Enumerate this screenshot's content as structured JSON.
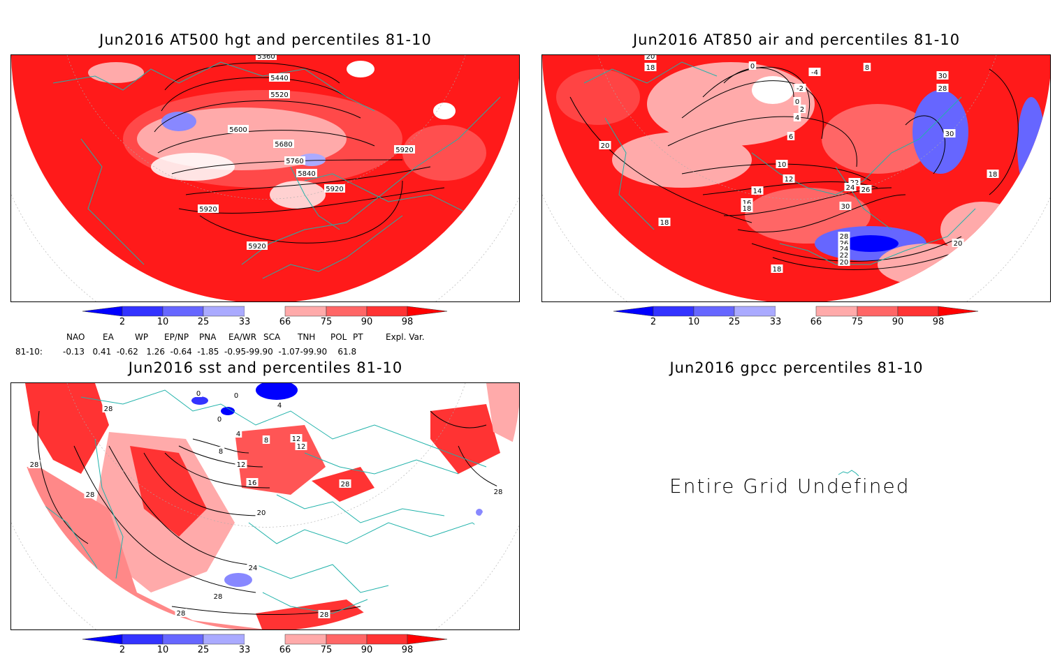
{
  "panels": {
    "hgt": {
      "title": "Jun2016 AT500 hgt and percentiles 81-10",
      "contours": [
        "5360",
        "5440",
        "5520",
        "5600",
        "5680",
        "5760",
        "5840",
        "5920",
        "5920",
        "5920",
        "5920"
      ]
    },
    "air": {
      "title": "Jun2016 AT850 air and percentiles 81-10",
      "contours": [
        "20",
        "18",
        "0",
        "-4",
        "8",
        "-2",
        "28",
        "30",
        "0",
        "2",
        "4",
        "6",
        "30",
        "20",
        "10",
        "12",
        "22",
        "24",
        "26",
        "14",
        "16",
        "18",
        "30",
        "18",
        "18",
        "28",
        "26",
        "24",
        "22",
        "20",
        "20",
        "18"
      ]
    },
    "sst": {
      "title": "Jun2016 sst and percentiles 81-10",
      "contours": [
        "28",
        "0",
        "0",
        "0",
        "4",
        "4",
        "8",
        "12",
        "12",
        "8",
        "12",
        "16",
        "20",
        "24",
        "28",
        "28",
        "28",
        "28",
        "28",
        "28",
        "28"
      ]
    },
    "gpcc": {
      "title": "Jun2016 gpcc percentiles 81-10",
      "message": "Entire Grid Undefined"
    }
  },
  "colorbar": {
    "labels": [
      "2",
      "10",
      "25",
      "33",
      "66",
      "75",
      "90",
      "98"
    ],
    "colors": [
      "#0000ff",
      "#3333ff",
      "#6666ff",
      "#aaaaff",
      "#ffffff",
      "#ffaaaa",
      "#ff6666",
      "#ff3333",
      "#ff0000"
    ]
  },
  "teleconnections": {
    "headers": [
      "NAO",
      "EA",
      "WP",
      "EP/NP",
      "PNA",
      "EA/WR",
      "SCA",
      "TNH",
      "POL",
      "PT",
      "Expl. Var."
    ],
    "row_label": "81-10:",
    "values": "-0.13   0.41  -0.62   1.26  -0.64  -1.85  -0.95-99.90  -1.07-99.90    61.8"
  }
}
